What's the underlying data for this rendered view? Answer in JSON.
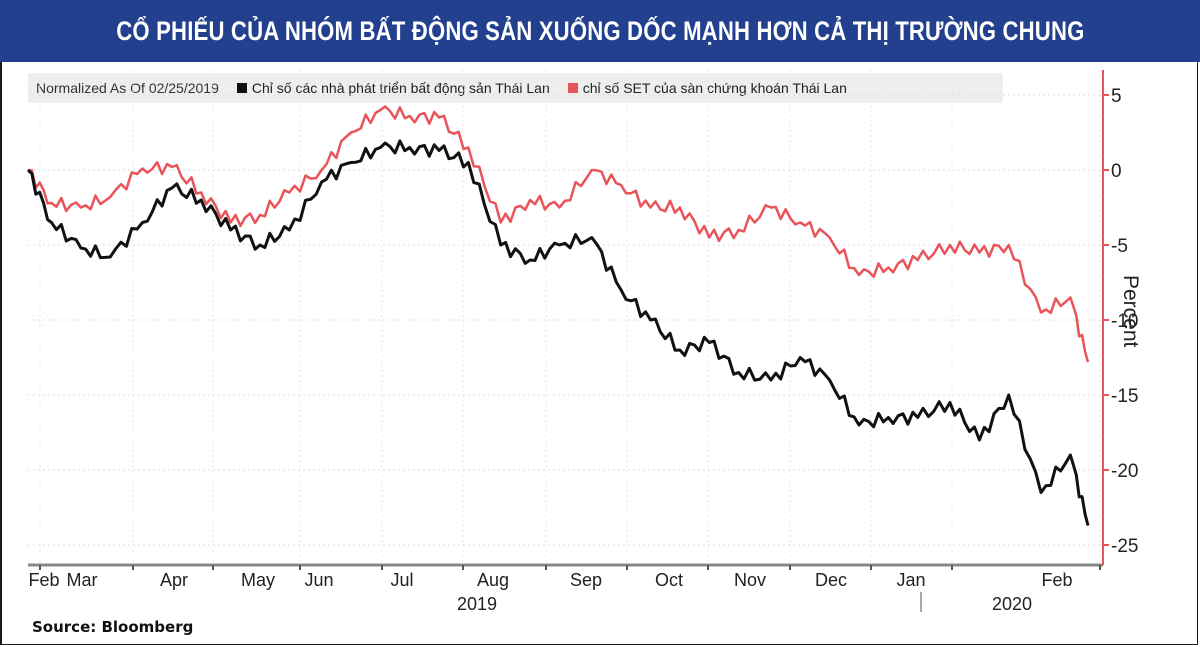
{
  "header": {
    "title": "CỔ PHIẾU CỦA NHÓM BẤT ĐỘNG SẢN XUỐNG DỐC MẠNH HƠN CẢ THỊ TRƯỜNG CHUNG",
    "background": "#23408e"
  },
  "legend": {
    "normalized_label": "Normalized As Of 02/25/2019",
    "items": [
      {
        "label": "Chỉ số các nhà phát triển bất động sản Thái Lan",
        "color": "#111111"
      },
      {
        "label": "chỉ số SET của sàn chứng khoán Thái Lan",
        "color": "#e8545a"
      }
    ]
  },
  "axes": {
    "y_label": "Percent",
    "y_ticks": [
      "5",
      "0",
      "-5",
      "-10",
      "-15",
      "-20",
      "-25"
    ],
    "x_ticks": [
      "Feb",
      "Mar",
      "Apr",
      "May",
      "Jun",
      "Jul",
      "Aug",
      "Sep",
      "Oct",
      "Nov",
      "Dec",
      "Jan",
      "Feb"
    ],
    "x_years": [
      "2019",
      "2020"
    ]
  },
  "source": "Source: Bloomberg",
  "chart_data": {
    "type": "line",
    "title": "CỔ PHIẾU CỦA NHÓM BẤT ĐỘNG SẢN XUỐNG DỐC MẠNH HƠN CẢ THỊ TRƯỜNG CHUNG",
    "subtitle": "Normalized As Of 02/25/2019",
    "xlabel": "",
    "ylabel": "Percent",
    "ylim": [
      -26,
      6
    ],
    "y_axis_position": "right",
    "grid": true,
    "legend_position": "top",
    "x_range": [
      "2019-02-25",
      "2020-02-21"
    ],
    "x": [
      "2019-02-25",
      "2019-03-05",
      "2019-03-15",
      "2019-03-25",
      "2019-04-05",
      "2019-04-15",
      "2019-04-25",
      "2019-05-05",
      "2019-05-15",
      "2019-05-25",
      "2019-06-05",
      "2019-06-15",
      "2019-06-25",
      "2019-07-05",
      "2019-07-15",
      "2019-07-25",
      "2019-08-05",
      "2019-08-15",
      "2019-08-25",
      "2019-09-05",
      "2019-09-15",
      "2019-09-25",
      "2019-10-05",
      "2019-10-15",
      "2019-10-25",
      "2019-11-05",
      "2019-11-15",
      "2019-11-25",
      "2019-12-05",
      "2019-12-15",
      "2019-12-25",
      "2020-01-05",
      "2020-01-15",
      "2020-01-25",
      "2020-02-05",
      "2020-02-15",
      "2020-02-21"
    ],
    "series": [
      {
        "name": "Chỉ số các nhà phát triển bất động sản Thái Lan",
        "color": "#111111",
        "values": [
          0,
          -3.5,
          -5.2,
          -5.8,
          -3.5,
          -1.2,
          -2.0,
          -4.0,
          -5.0,
          -4.0,
          -0.8,
          0.5,
          1.5,
          1.5,
          1.3,
          0.5,
          -5.0,
          -6.0,
          -5.0,
          -4.5,
          -8.0,
          -10.0,
          -12.0,
          -11.5,
          -13.5,
          -14.0,
          -12.5,
          -14.0,
          -17.0,
          -16.5,
          -16.5,
          -15.5,
          -18.0,
          -15.0,
          -21.5,
          -19.0,
          -23.7
        ]
      },
      {
        "name": "chỉ số SET của sàn chứng khoán Thái Lan",
        "color": "#e8545a",
        "values": [
          0,
          -2.2,
          -2.5,
          -1.8,
          0.1,
          0.2,
          -1.5,
          -3.5,
          -3.0,
          -1.5,
          0.0,
          2.5,
          4.0,
          3.6,
          3.5,
          1.5,
          -3.5,
          -2.0,
          -2.5,
          0.0,
          -1.0,
          -2.5,
          -2.5,
          -4.5,
          -4.0,
          -2.5,
          -3.5,
          -4.5,
          -7.0,
          -6.5,
          -6.0,
          -5.0,
          -5.5,
          -5.0,
          -9.5,
          -8.5,
          -12.8
        ]
      }
    ]
  }
}
